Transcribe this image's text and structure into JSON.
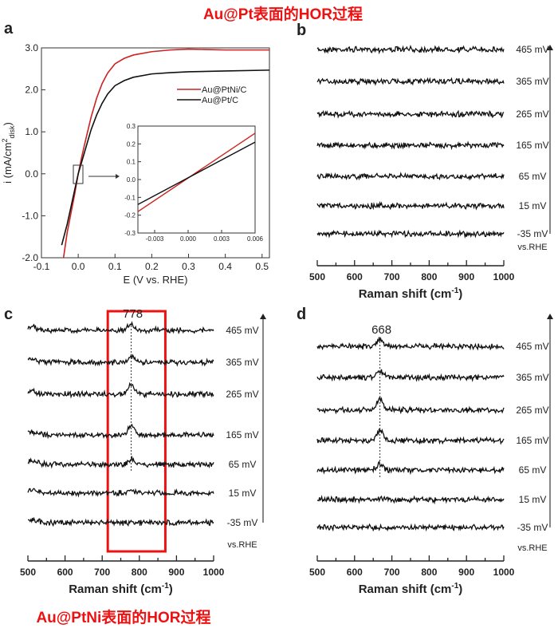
{
  "titles": {
    "top": "Au@Pt表面的HOR过程",
    "bottom": "Au@PtNi表面的HOR过程",
    "color": "#ee1111"
  },
  "chart_data": [
    {
      "panel": "a",
      "type": "line",
      "xlabel": "E (V vs. RHE)",
      "ylabel": "i (mA/cm",
      "ylabel_sup": "2",
      "ylabel_sub": "disk",
      "ylabel_end": ")",
      "xlim": [
        -0.1,
        0.52
      ],
      "ylim": [
        -2.0,
        3.0
      ],
      "xticks": [
        "-0.1",
        "0.0",
        "0.1",
        "0.2",
        "0.3",
        "0.4",
        "0.5"
      ],
      "yticks": [
        "-2.0",
        "-1.0",
        "0.0",
        "1.0",
        "2.0",
        "3.0"
      ],
      "legend": "right",
      "series": [
        {
          "name": "Au@PtNi/C",
          "color": "#cc2222",
          "x": [
            -0.04,
            -0.03,
            -0.02,
            -0.01,
            0,
            0.01,
            0.02,
            0.035,
            0.05,
            0.065,
            0.08,
            0.1,
            0.125,
            0.15,
            0.2,
            0.25,
            0.3,
            0.4,
            0.52
          ],
          "y": [
            -2.0,
            -1.4,
            -0.95,
            -0.5,
            0,
            0.42,
            0.8,
            1.35,
            1.8,
            2.15,
            2.4,
            2.62,
            2.75,
            2.83,
            2.91,
            2.95,
            2.97,
            2.95,
            2.95
          ]
        },
        {
          "name": "Au@Pt/C",
          "color": "#111111",
          "x": [
            -0.045,
            -0.03,
            -0.02,
            -0.01,
            0,
            0.01,
            0.02,
            0.035,
            0.05,
            0.065,
            0.08,
            0.1,
            0.125,
            0.15,
            0.2,
            0.25,
            0.3,
            0.4,
            0.52
          ],
          "y": [
            -1.7,
            -1.2,
            -0.8,
            -0.4,
            0,
            0.3,
            0.6,
            1.05,
            1.4,
            1.68,
            1.9,
            2.1,
            2.22,
            2.3,
            2.38,
            2.41,
            2.43,
            2.45,
            2.47
          ]
        }
      ],
      "inset": {
        "xlim": [
          -0.0045,
          0.006
        ],
        "ylim": [
          -0.3,
          0.3
        ],
        "xticks": [
          "-0.003",
          "0.000",
          "0.003",
          "0.006"
        ],
        "yticks": [
          "-0.3",
          "-0.2",
          "-0.1",
          "0.0",
          "0.1",
          "0.2",
          "0.3"
        ],
        "series": [
          {
            "name": "Au@PtNi/C",
            "x": [
              -0.0045,
              0.006
            ],
            "y": [
              -0.18,
              0.26
            ]
          },
          {
            "name": "Au@Pt/C",
            "x": [
              -0.0045,
              0.006
            ],
            "y": [
              -0.14,
              0.21
            ]
          }
        ]
      }
    },
    {
      "panel": "b",
      "type": "line",
      "xlabel": "Raman shift (cm",
      "xlabel_sup": "-1",
      "xlabel_end": ")",
      "xlim": [
        500,
        1000
      ],
      "xticks": [
        "500",
        "600",
        "700",
        "800",
        "900",
        "1000"
      ],
      "reference": "vs.RHE",
      "peak": null,
      "series": [
        {
          "name": "465 mV",
          "peak_intensity": 0
        },
        {
          "name": "365 mV",
          "peak_intensity": 0
        },
        {
          "name": "265 mV",
          "peak_intensity": 0
        },
        {
          "name": "165 mV",
          "peak_intensity": 0
        },
        {
          "name": "65 mV",
          "peak_intensity": 0
        },
        {
          "name": "15 mV",
          "peak_intensity": 0
        },
        {
          "name": "-35 mV",
          "peak_intensity": 0
        }
      ]
    },
    {
      "panel": "c",
      "type": "line",
      "xlabel": "Raman shift (cm",
      "xlabel_sup": "-1",
      "xlabel_end": ")",
      "xlim": [
        500,
        1000
      ],
      "xticks": [
        "500",
        "600",
        "700",
        "800",
        "900",
        "1000"
      ],
      "reference": "vs.RHE",
      "peak": 778,
      "peak_label": "778",
      "highlight_range": [
        715,
        870
      ],
      "series": [
        {
          "name": "465 mV",
          "peak_intensity": 0.5
        },
        {
          "name": "365 mV",
          "peak_intensity": 0.55
        },
        {
          "name": "265 mV",
          "peak_intensity": 0.8
        },
        {
          "name": "165 mV",
          "peak_intensity": 0.9
        },
        {
          "name": "65 mV",
          "peak_intensity": 0.4
        },
        {
          "name": "15 mV",
          "peak_intensity": 0.2
        },
        {
          "name": "-35 mV",
          "peak_intensity": 0
        }
      ]
    },
    {
      "panel": "d",
      "type": "line",
      "xlabel": "Raman shift (cm",
      "xlabel_sup": "-1",
      "xlabel_end": ")",
      "xlim": [
        500,
        1000
      ],
      "xticks": [
        "500",
        "600",
        "700",
        "800",
        "900",
        "1000"
      ],
      "reference": "vs.RHE",
      "peak": 668,
      "peak_label": "668",
      "series": [
        {
          "name": "465 mV",
          "peak_intensity": 0.6
        },
        {
          "name": "365 mV",
          "peak_intensity": 0.6
        },
        {
          "name": "265 mV",
          "peak_intensity": 1.0
        },
        {
          "name": "165 mV",
          "peak_intensity": 0.9
        },
        {
          "name": "65 mV",
          "peak_intensity": 0.55
        },
        {
          "name": "15 mV",
          "peak_intensity": 0.1
        },
        {
          "name": "-35 mV",
          "peak_intensity": 0
        }
      ]
    }
  ]
}
